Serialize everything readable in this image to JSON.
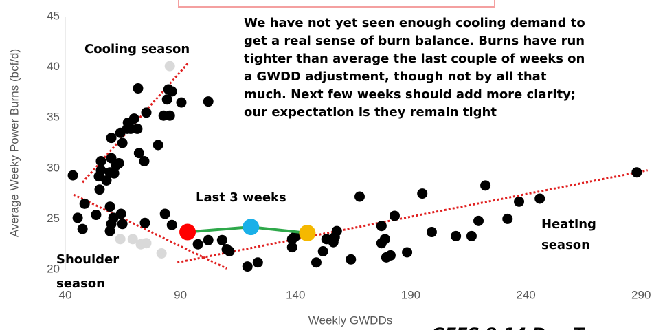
{
  "chart_data": {
    "type": "scatter",
    "x_label": "Weekly GWDDs",
    "y_label": "Average Weeky Power Burns (bcf/d)",
    "xlim": [
      40,
      295
    ],
    "ylim": [
      20,
      45
    ],
    "xticks": [
      40,
      90,
      140,
      190,
      240,
      290
    ],
    "yticks": [
      20,
      25,
      30,
      35,
      40,
      45
    ],
    "grid": false,
    "series": [
      {
        "color": "#000000",
        "x": [
          43.3,
          45.4,
          47.5,
          48.4,
          53.4,
          54.9,
          54.6,
          55.5,
          55.5,
          57.9,
          59.4,
          60,
          61.2,
          62.1,
          63.3,
          63.9,
          64.8,
          60,
          66.9,
          67.2,
          68.4,
          69.9,
          71.3,
          72,
          74.3,
          75.2,
          71.6,
          80.3,
          82.7,
          84.2,
          84.8,
          86.3,
          85.4,
          90.4,
          102.1,
          59.4,
          60.9,
          60,
          64.2,
          64.8,
          59.4,
          74.6,
          83.3,
          86.3,
          97.6,
          102.1,
          108.1,
          110.1,
          111.3,
          119.1,
          123.6,
          138.5,
          138.5,
          140,
          144.5,
          149,
          151.9,
          153.4,
          156.4,
          157.9,
          167.8,
          164,
          177.3,
          177.3,
          178.8,
          179.4,
          181.2,
          183,
          188.4,
          195,
          199.1,
          209.6,
          216.4,
          219.4,
          222.4,
          232,
          237,
          246,
          288.1,
          157
        ],
        "values": [
          29.3,
          25.1,
          24.0,
          26.5,
          25.4,
          27.9,
          29.2,
          29.8,
          30.7,
          28.8,
          29.6,
          31.0,
          29.5,
          30.3,
          30.5,
          33.5,
          32.5,
          33.0,
          33.9,
          34.5,
          33.9,
          34.9,
          33.9,
          31.5,
          30.7,
          35.5,
          37.9,
          32.3,
          35.2,
          36.8,
          37.8,
          37.6,
          35.2,
          36.5,
          36.6,
          26.2,
          25.1,
          24.5,
          25.5,
          24.5,
          23.8,
          24.6,
          25.5,
          24.4,
          22.5,
          22.9,
          22.9,
          22.0,
          21.8,
          20.3,
          20.7,
          22.2,
          23.0,
          23.3,
          23.5,
          20.7,
          21.8,
          23.0,
          22.7,
          23.8,
          27.2,
          21.0,
          22.6,
          24.3,
          23.0,
          21.2,
          21.4,
          25.3,
          21.7,
          27.5,
          23.7,
          23.3,
          23.3,
          24.8,
          28.3,
          25.0,
          26.7,
          27.0,
          29.6,
          23.2
        ]
      },
      {
        "color": "#d9d9d9",
        "x": [
          63.9,
          69.3,
          72.8,
          75.2,
          81.8,
          85.4
        ],
        "values": [
          23.0,
          23.0,
          22.5,
          22.6,
          21.6,
          40.1
        ]
      },
      {
        "name": "Last 3 weeks",
        "line_color": "#2ea84a",
        "colors": [
          "#ff0000",
          "#1ab0e8",
          "#f5b800"
        ],
        "x": [
          93.1,
          120.6,
          145.1
        ],
        "values": [
          23.7,
          24.2,
          23.6
        ]
      }
    ],
    "trendlines": [
      {
        "color": "#e02020",
        "x": [
          47.5,
          93.7
        ],
        "values": [
          28.6,
          40.5
        ]
      },
      {
        "color": "#e02020",
        "x": [
          43.6,
          110.1
        ],
        "values": [
          27.4,
          20.1
        ]
      },
      {
        "color": "#e02020",
        "x": [
          88.7,
          292.8
        ],
        "values": [
          20.7,
          29.8
        ]
      }
    ],
    "annotations": [
      {
        "lines": [
          "We have not yet seen enough cooling demand to",
          "get a real sense of burn balance.  Burns have run",
          "tighter than average the last couple of weeks on",
          "a GWDD adjustment, though not by all that",
          "much.  Next few weeks should add more clarity;",
          "our expectation is they remain tight"
        ]
      },
      {
        "lines": [
          "Cooling season"
        ]
      },
      {
        "lines": [
          "Heating",
          "season"
        ]
      },
      {
        "lines": [
          "Shoulder",
          "season"
        ]
      },
      {
        "lines": [
          "GEFS 8-14 Day T"
        ]
      }
    ]
  }
}
